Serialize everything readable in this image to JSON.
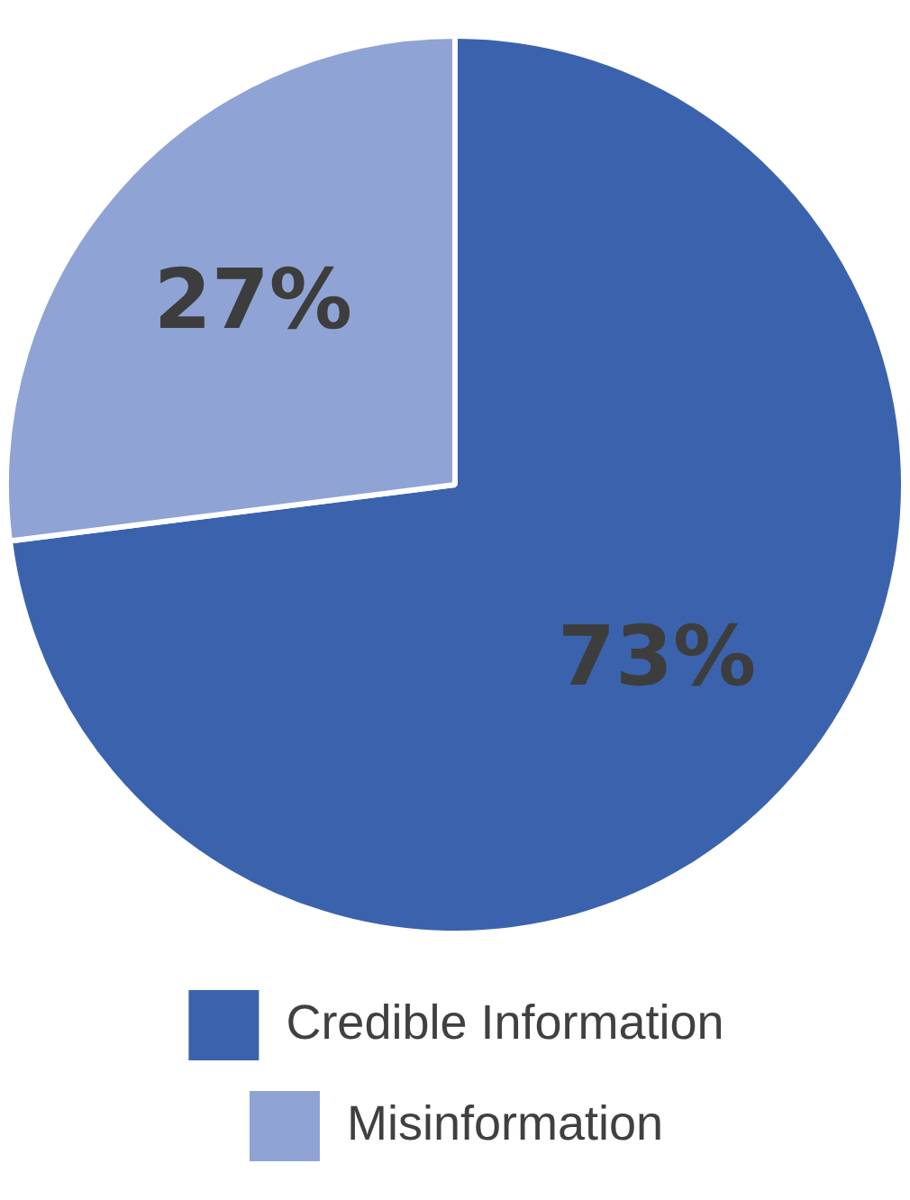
{
  "chart_data": {
    "type": "pie",
    "categories": [
      "Credible Information",
      "Misinformation"
    ],
    "values": [
      73,
      27
    ],
    "colors": [
      "#3b63ad",
      "#8fa3d4"
    ],
    "value_labels": [
      "73%",
      "27%"
    ],
    "legend": "bottom"
  }
}
